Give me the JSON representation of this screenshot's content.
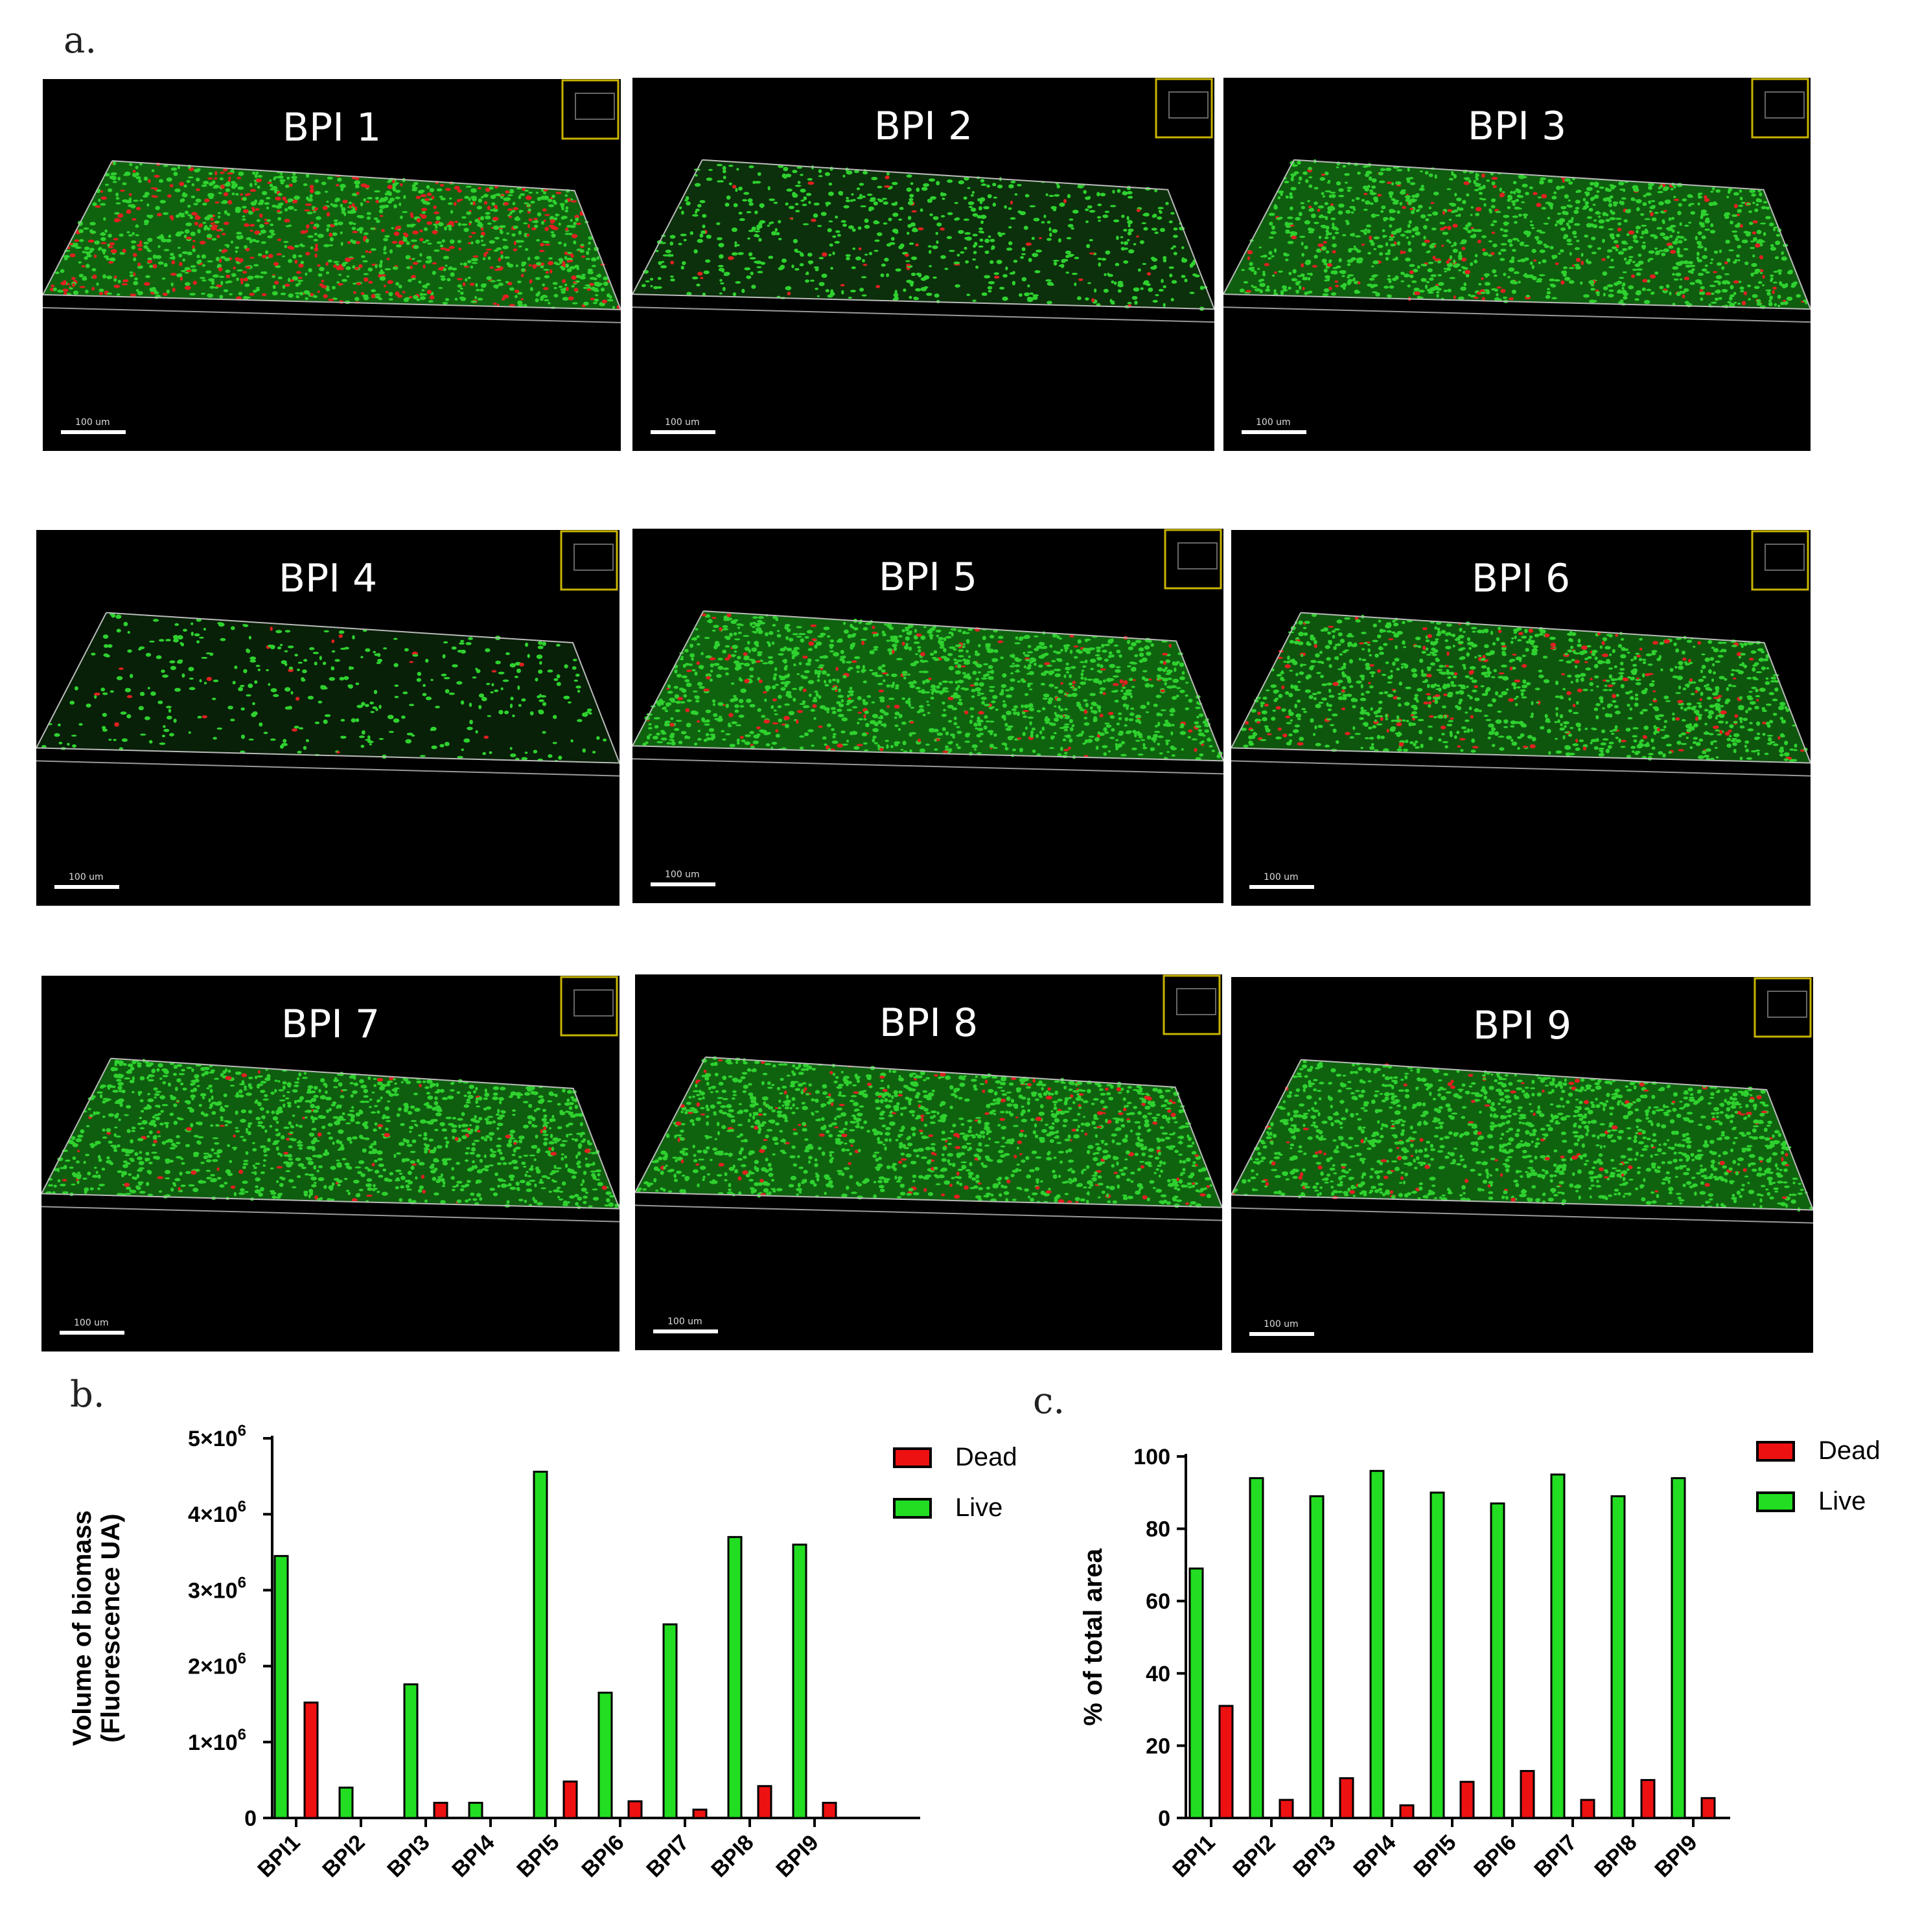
{
  "panel_letters": {
    "a": "a.",
    "b": "b.",
    "c": "c."
  },
  "micrographs": [
    {
      "title": "BPI 1",
      "scale_bar": "100 um",
      "colors": {
        "live": "#2fd12f",
        "dead": "#e02020"
      },
      "dead_fraction": 0.31,
      "density": 0.8
    },
    {
      "title": "BPI 2",
      "scale_bar": "100 um",
      "colors": {
        "live": "#2fd12f",
        "dead": "#e02020"
      },
      "dead_fraction": 0.05,
      "density": 0.35
    },
    {
      "title": "BPI 3",
      "scale_bar": "100 um",
      "colors": {
        "live": "#2fd12f",
        "dead": "#e02020"
      },
      "dead_fraction": 0.11,
      "density": 0.75
    },
    {
      "title": "BPI 4",
      "scale_bar": "100 um",
      "colors": {
        "live": "#2fd12f",
        "dead": "#e02020"
      },
      "dead_fraction": 0.03,
      "density": 0.15
    },
    {
      "title": "BPI 5",
      "scale_bar": "100 um",
      "colors": {
        "live": "#2fd12f",
        "dead": "#e02020"
      },
      "dead_fraction": 0.1,
      "density": 0.8
    },
    {
      "title": "BPI 6",
      "scale_bar": "100 um",
      "colors": {
        "live": "#2fd12f",
        "dead": "#e02020"
      },
      "dead_fraction": 0.13,
      "density": 0.7
    },
    {
      "title": "BPI 7",
      "scale_bar": "100 um",
      "colors": {
        "live": "#2fd12f",
        "dead": "#e02020"
      },
      "dead_fraction": 0.05,
      "density": 0.75
    },
    {
      "title": "BPI 8",
      "scale_bar": "100 um",
      "colors": {
        "live": "#2fd12f",
        "dead": "#e02020"
      },
      "dead_fraction": 0.1,
      "density": 0.8
    },
    {
      "title": "BPI 9",
      "scale_bar": "100 um",
      "colors": {
        "live": "#2fd12f",
        "dead": "#e02020"
      },
      "dead_fraction": 0.06,
      "density": 0.8
    }
  ],
  "chart_data": [
    {
      "type": "bar",
      "categories": [
        "BPI1",
        "BPI2",
        "BPI3",
        "BPI4",
        "BPI5",
        "BPI6",
        "BPI7",
        "BPI8",
        "BPI9"
      ],
      "series": [
        {
          "name": "Live",
          "color": "#22dd22",
          "values": [
            3450000,
            400000,
            1760000,
            200000,
            4560000,
            1650000,
            2550000,
            3700000,
            3600000
          ]
        },
        {
          "name": "Dead",
          "color": "#ee1111",
          "values": [
            1520000,
            0,
            200000,
            0,
            480000,
            220000,
            110000,
            420000,
            200000
          ]
        }
      ],
      "ylabel": [
        "Volume of biomass",
        "(Fluorescence UA)"
      ],
      "yticks": [
        {
          "value": 0,
          "label": "0",
          "exp": ""
        },
        {
          "value": 1000000,
          "label": "1×10",
          "exp": "6"
        },
        {
          "value": 2000000,
          "label": "2×10",
          "exp": "6"
        },
        {
          "value": 3000000,
          "label": "3×10",
          "exp": "6"
        },
        {
          "value": 4000000,
          "label": "4×10",
          "exp": "6"
        },
        {
          "value": 5000000,
          "label": "5×10",
          "exp": "6"
        }
      ],
      "ylim": [
        0,
        5000000
      ],
      "legend": [
        "Dead",
        "Live"
      ],
      "legend_placement": "top-right",
      "grid": false
    },
    {
      "type": "bar",
      "categories": [
        "BPI1",
        "BPI2",
        "BPI3",
        "BPI4",
        "BPI5",
        "BPI6",
        "BPI7",
        "BPI8",
        "BPI9"
      ],
      "series": [
        {
          "name": "Live",
          "color": "#22dd22",
          "values": [
            69,
            94,
            89,
            96,
            90,
            87,
            95,
            89,
            94
          ]
        },
        {
          "name": "Dead",
          "color": "#ee1111",
          "values": [
            31,
            5,
            11,
            3.5,
            10,
            13,
            5,
            10.5,
            5.5
          ]
        }
      ],
      "ylabel": [
        "% of total area"
      ],
      "yticks": [
        {
          "value": 0,
          "label": "0",
          "exp": ""
        },
        {
          "value": 20,
          "label": "20",
          "exp": ""
        },
        {
          "value": 40,
          "label": "40",
          "exp": ""
        },
        {
          "value": 60,
          "label": "60",
          "exp": ""
        },
        {
          "value": 80,
          "label": "80",
          "exp": ""
        },
        {
          "value": 100,
          "label": "100",
          "exp": ""
        }
      ],
      "ylim": [
        0,
        100
      ],
      "legend": [
        "Dead",
        "Live"
      ],
      "legend_placement": "top-right",
      "grid": false
    }
  ]
}
